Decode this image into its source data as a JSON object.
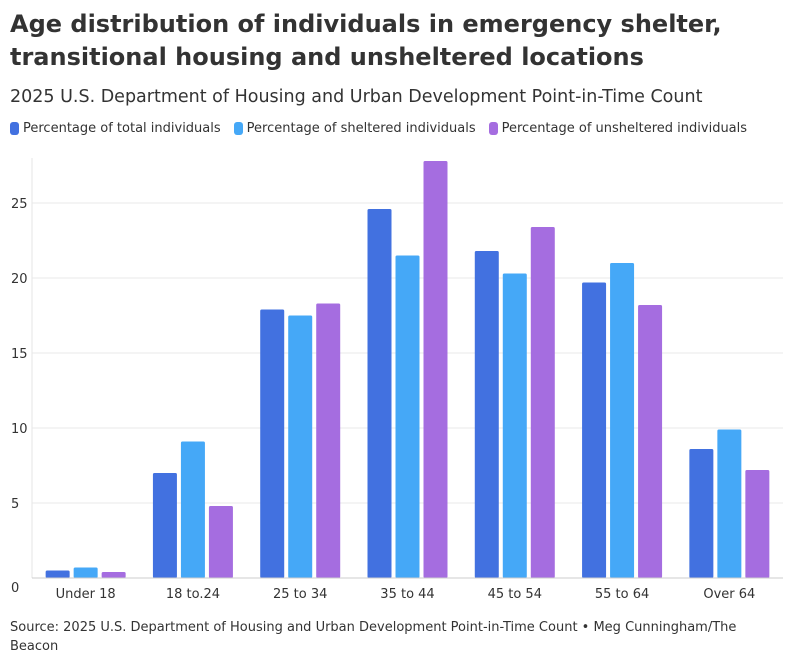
{
  "chart_data": {
    "type": "bar",
    "title": "Age distribution of individuals in emergency shelter, transitional housing and unsheltered locations",
    "subtitle": "2025 U.S. Department of Housing and Urban Development Point-in-Time Count",
    "categories": [
      "Under 18",
      "18 to.24",
      "25 to 34",
      "35 to 44",
      "45 to 54",
      "55 to 64",
      "Over 64"
    ],
    "series": [
      {
        "name": "Percentage of total individuals",
        "color": "#4271e0",
        "values": [
          0.5,
          7.0,
          17.9,
          24.6,
          21.8,
          19.7,
          8.6
        ]
      },
      {
        "name": "Percentage of sheltered individuals",
        "color": "#45a8f7",
        "values": [
          0.7,
          9.1,
          17.5,
          21.5,
          20.3,
          21.0,
          9.9
        ]
      },
      {
        "name": "Percentage of unsheltered individuals",
        "color": "#a56de0",
        "values": [
          0.4,
          4.8,
          18.3,
          27.8,
          23.4,
          18.2,
          7.2
        ]
      }
    ],
    "yticks": [
      "0",
      "5",
      "10",
      "15",
      "20",
      "25"
    ],
    "ylim": [
      0,
      28
    ],
    "grid": true,
    "legend_position": "top-left",
    "source": "Source: 2025 U.S. Department of Housing and Urban Development Point-in-Time Count • Meg Cunningham/The Beacon"
  }
}
